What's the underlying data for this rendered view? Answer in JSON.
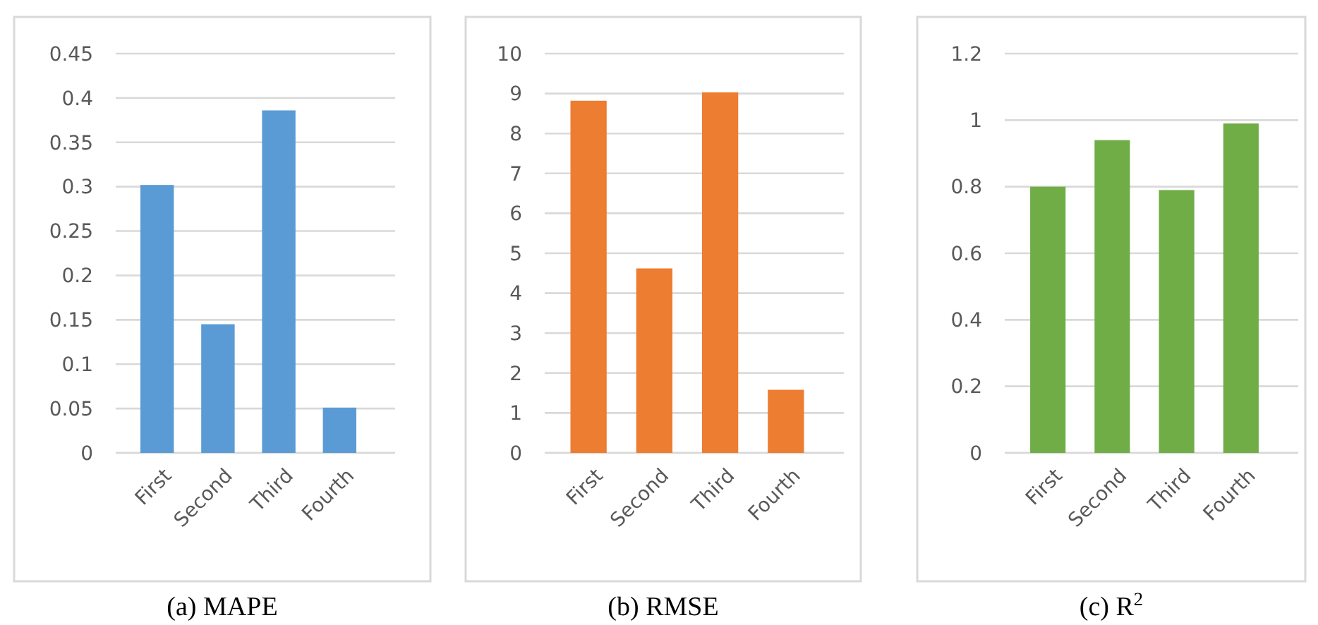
{
  "chart_data": [
    {
      "type": "bar",
      "title": "(a) MAPE",
      "categories": [
        "First",
        "Second",
        "Third",
        "Fourth"
      ],
      "values": [
        0.302,
        0.145,
        0.386,
        0.051
      ],
      "color": "#5b9bd5",
      "ylim": [
        0,
        0.45
      ],
      "yticks": [
        0,
        0.05,
        0.1,
        0.15,
        0.2,
        0.25,
        0.3,
        0.35,
        0.4,
        0.45
      ],
      "grid": "y"
    },
    {
      "type": "bar",
      "title": "(b) RMSE",
      "categories": [
        "First",
        "Second",
        "Third",
        "Fourth"
      ],
      "values": [
        8.82,
        4.62,
        9.03,
        1.58
      ],
      "color": "#ed7d31",
      "ylim": [
        0,
        10
      ],
      "yticks": [
        0,
        1,
        2,
        3,
        4,
        5,
        6,
        7,
        8,
        9,
        10
      ],
      "grid": "y"
    },
    {
      "type": "bar",
      "title": "(c) R$^{2}$",
      "categories": [
        "First",
        "Second",
        "Third",
        "Fourth"
      ],
      "values": [
        0.8,
        0.94,
        0.79,
        0.99
      ],
      "color": "#70ad47",
      "ylim": [
        0,
        1.2
      ],
      "yticks": [
        0,
        0.2,
        0.4,
        0.6,
        0.8,
        1,
        1.2
      ],
      "grid": "y"
    }
  ]
}
